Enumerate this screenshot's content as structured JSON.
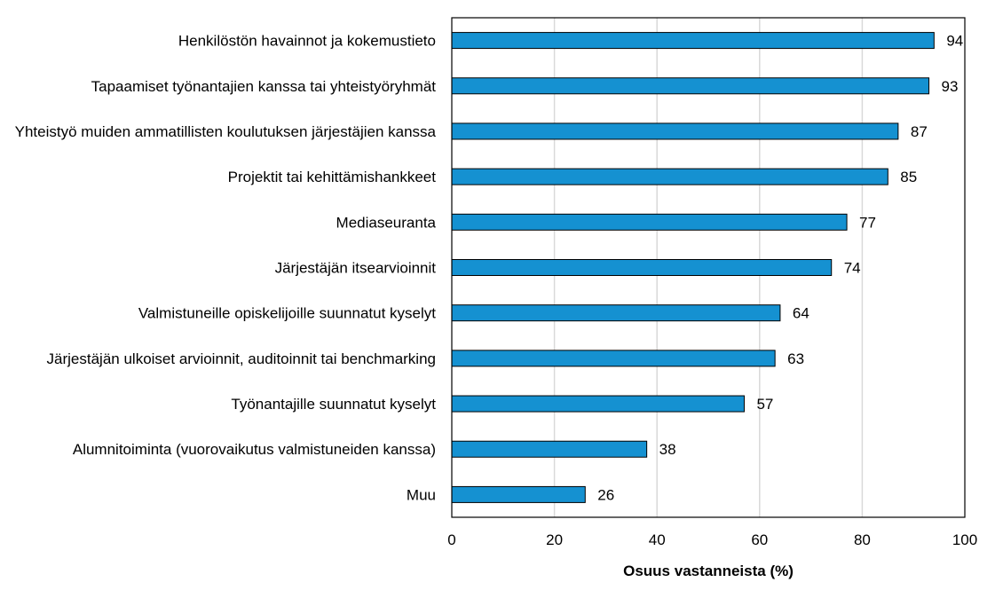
{
  "chart_data": {
    "type": "bar",
    "orientation": "horizontal",
    "categories": [
      "Henkilöstön havainnot ja kokemustieto",
      "Tapaamiset työnantajien kanssa tai yhteistyöryhmät",
      "Yhteistyö muiden ammatillisten koulutuksen järjestäjien kanssa",
      "Projektit tai kehittämishankkeet",
      "Mediaseuranta",
      "Järjestäjän itsearvioinnit",
      "Valmistuneille opiskelijoille suunnatut kyselyt",
      "Järjestäjän ulkoiset arvioinnit, auditoinnit tai benchmarking",
      "Työnantajille suunnatut kyselyt",
      "Alumnitoiminta (vuorovaikutus valmistuneiden kanssa)",
      "Muu"
    ],
    "values": [
      94,
      93,
      87,
      85,
      77,
      74,
      64,
      63,
      57,
      38,
      26
    ],
    "xlabel": "Osuus vastanneista (%)",
    "ylabel": "",
    "title": "",
    "xlim": [
      0,
      100
    ],
    "xticks": [
      0,
      20,
      40,
      60,
      80,
      100
    ],
    "grid": "vertical",
    "legend": "none",
    "colors": {
      "bar": "#1591d1",
      "bar_edge": "#000000",
      "grid": "#d9d9d9",
      "axis": "#000000"
    }
  }
}
